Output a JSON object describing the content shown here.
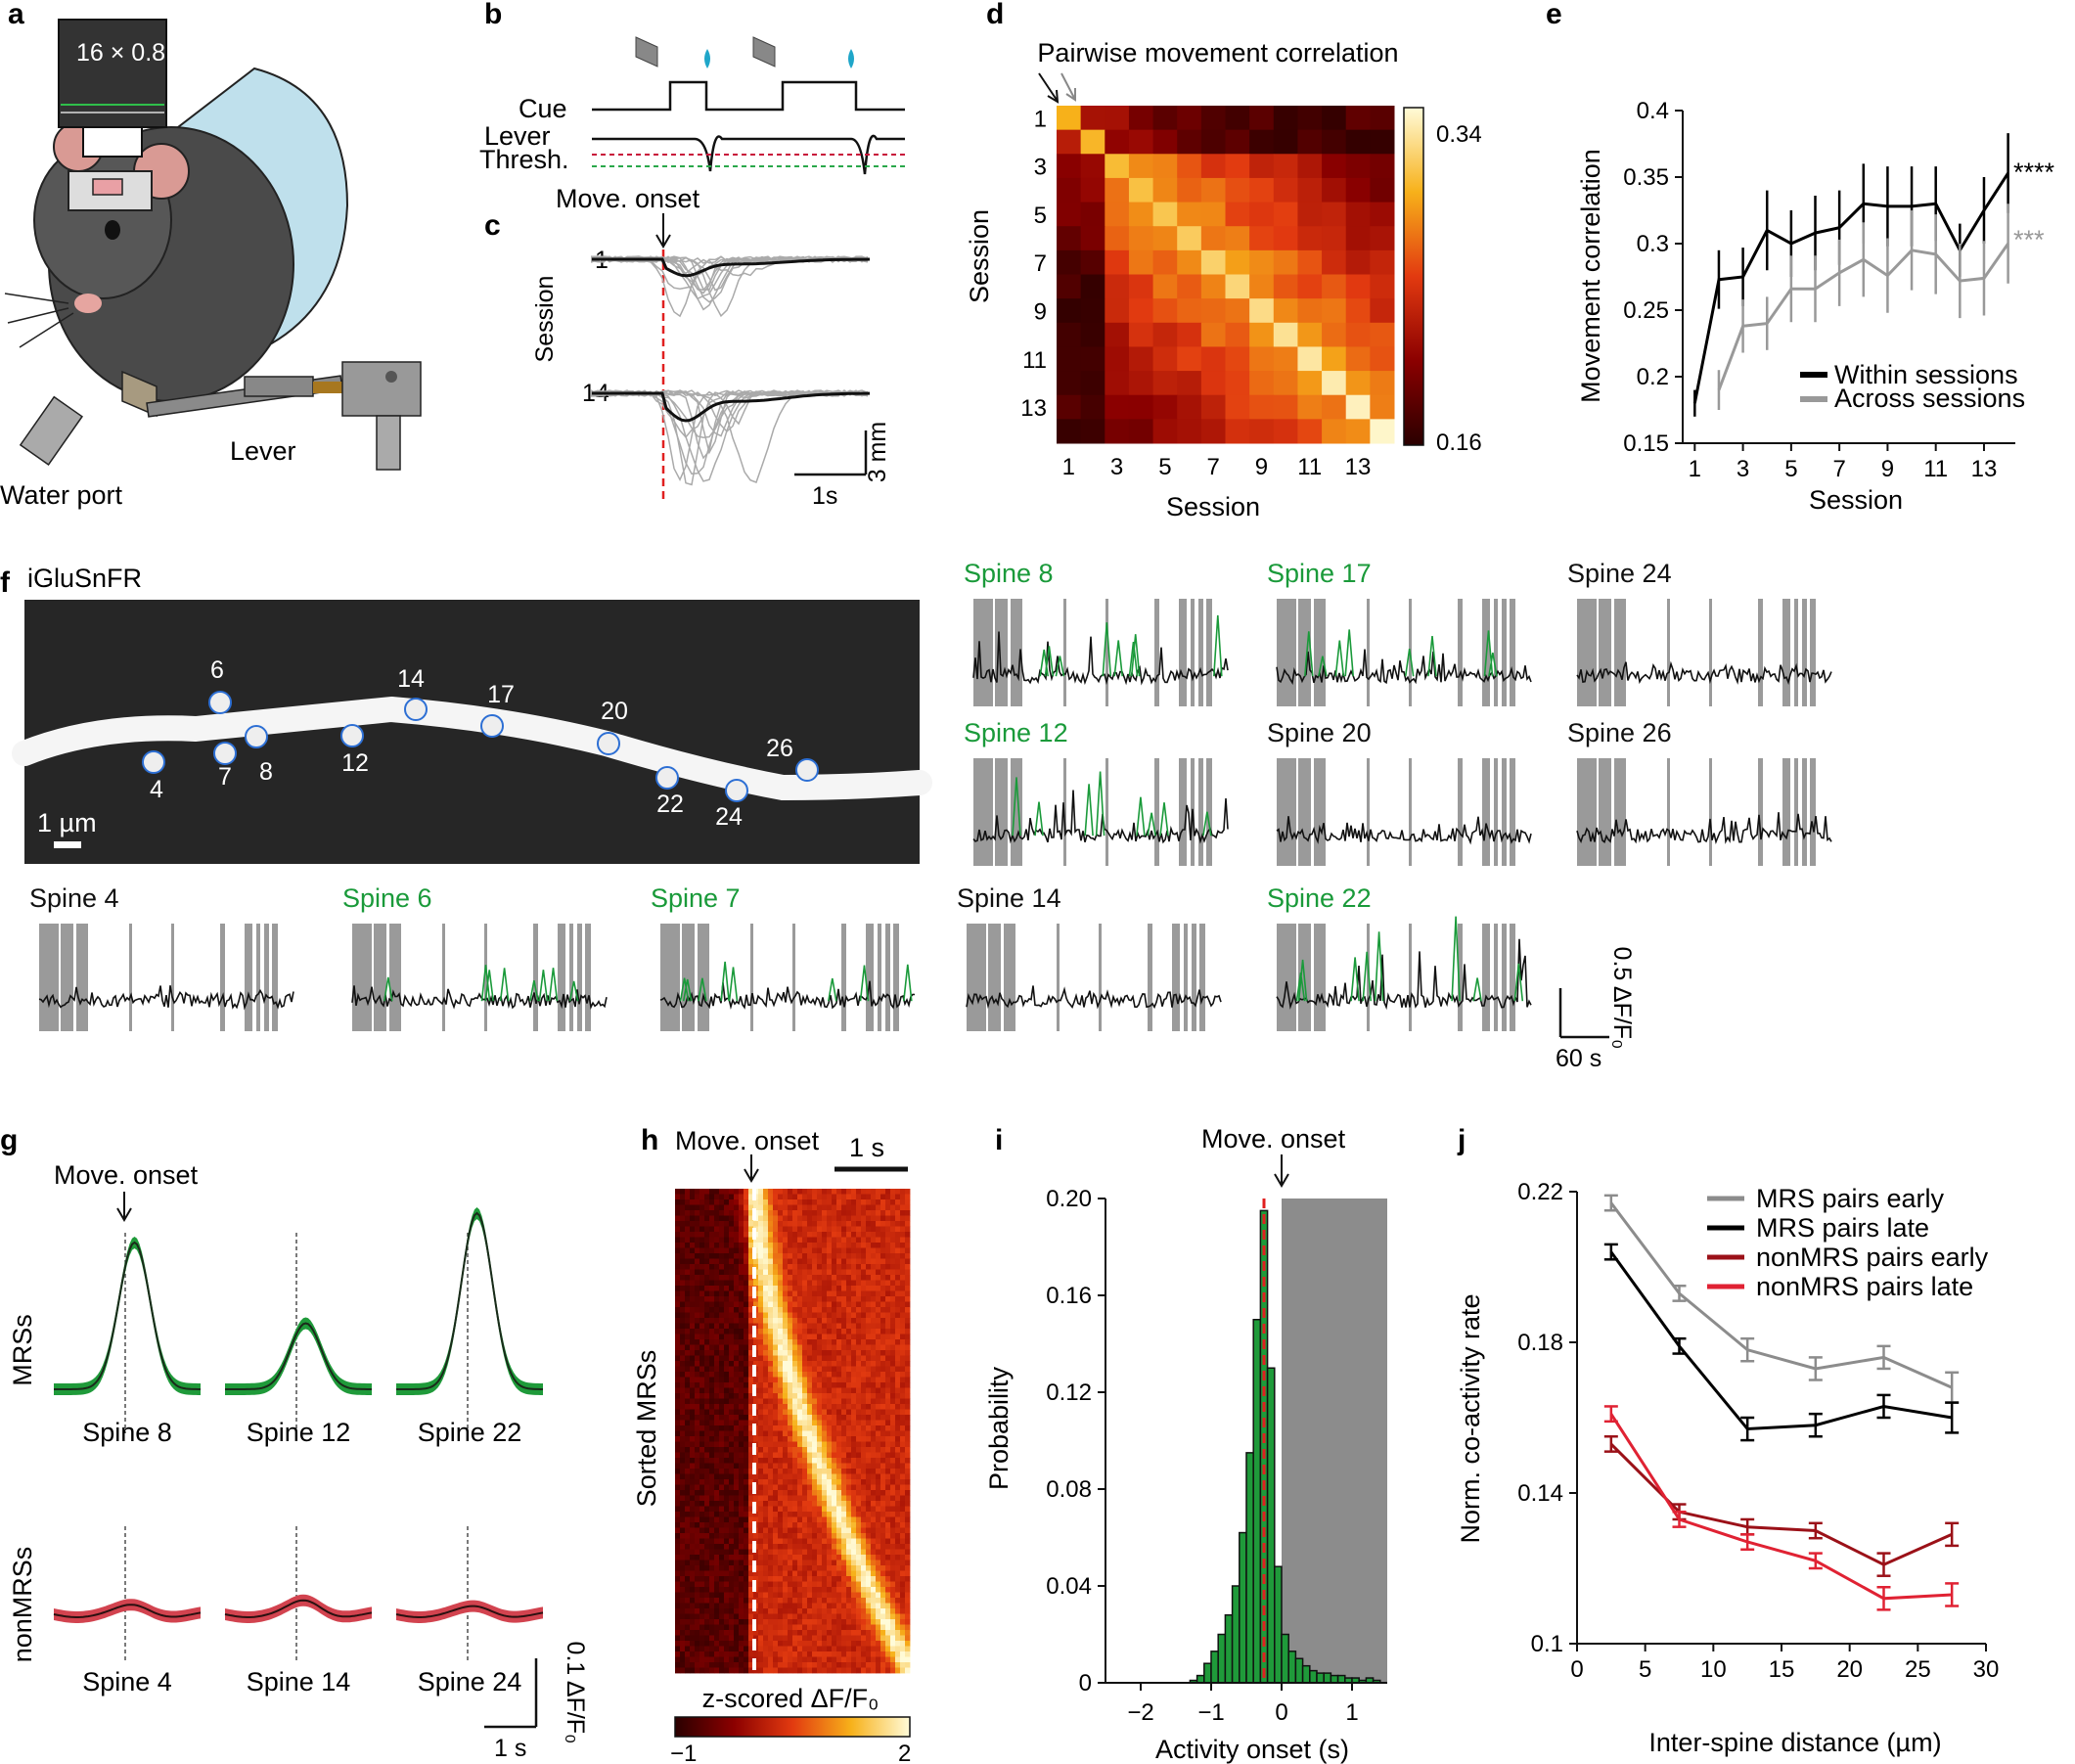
{
  "panels": {
    "a": {
      "letter": "a",
      "objective": "16 × 0.8",
      "water_port": "Water port",
      "lever": "Lever"
    },
    "b": {
      "letter": "b",
      "cue": "Cue",
      "lever": "Lever",
      "thresh": "Thresh."
    },
    "c": {
      "letter": "c",
      "move_onset": "Move. onset",
      "session_label": "Session",
      "session_1": "1",
      "session_14": "14",
      "scale_y": "3 mm",
      "scale_x": "1s"
    },
    "d": {
      "letter": "d",
      "title": "Pairwise movement correlation",
      "xlabel": "Session",
      "ylabel": "Session",
      "cbar_max": "0.34",
      "cbar_min": "0.16"
    },
    "e": {
      "letter": "e",
      "ylabel": "Movement correlation",
      "xlabel": "Session",
      "legend_within": "Within sessions",
      "legend_across": "Across sessions",
      "sig_within": "****",
      "sig_across": "***"
    },
    "f": {
      "letter": "f",
      "image_title": "iGluSnFR",
      "scalebar": "1 µm",
      "scale_y": "0.5 ΔF/F₀",
      "scale_x": "60 s"
    },
    "g": {
      "letter": "g",
      "move_onset": "Move. onset",
      "mrs_label": "MRSs",
      "nonmrs_label": "nonMRSs",
      "scale_y": "0.1 ΔF/F₀",
      "scale_x": "1 s"
    },
    "h": {
      "letter": "h",
      "move_onset": "Move. onset",
      "scale": "1 s",
      "ylabel": "Sorted MRSs",
      "cbar_label": "z-scored ΔF/F₀",
      "cbar_min": "−1",
      "cbar_max": "2"
    },
    "i": {
      "letter": "i",
      "move_onset": "Move. onset",
      "xlabel": "Activity onset (s)",
      "ylabel": "Probability"
    },
    "j": {
      "letter": "j",
      "xlabel": "Inter-spine distance (µm)",
      "ylabel": "Norm. co-activity rate"
    }
  },
  "spine_markers": [
    "6",
    "14",
    "17",
    "20",
    "26",
    "4",
    "7",
    "8",
    "12",
    "22",
    "24"
  ],
  "spine_traces": [
    {
      "label": "Spine 8",
      "color": "#1a9a3a"
    },
    {
      "label": "Spine 17",
      "color": "#1a9a3a"
    },
    {
      "label": "Spine 24",
      "color": "#111111"
    },
    {
      "label": "Spine 12",
      "color": "#1a9a3a"
    },
    {
      "label": "Spine 20",
      "color": "#111111"
    },
    {
      "label": "Spine 26",
      "color": "#111111"
    },
    {
      "label": "Spine 4",
      "color": "#111111"
    },
    {
      "label": "Spine 6",
      "color": "#1a9a3a"
    },
    {
      "label": "Spine 7",
      "color": "#1a9a3a"
    },
    {
      "label": "Spine 14",
      "color": "#111111"
    },
    {
      "label": "Spine 22",
      "color": "#1a9a3a"
    }
  ],
  "g_traces": {
    "mrs": [
      "Spine 8",
      "Spine 12",
      "Spine 22"
    ],
    "nonmrs": [
      "Spine 4",
      "Spine 14",
      "Spine 24"
    ]
  },
  "chart_data": [
    {
      "id": "d",
      "type": "heatmap",
      "title": "Pairwise movement correlation",
      "xlabel": "Session",
      "ylabel": "Session",
      "x_ticks": [
        1,
        3,
        5,
        7,
        9,
        11,
        13
      ],
      "y_ticks": [
        1,
        3,
        5,
        7,
        9,
        11,
        13
      ],
      "colorbar": {
        "min": 0.16,
        "max": 0.34
      },
      "size": 14
    },
    {
      "id": "e",
      "type": "line",
      "xlabel": "Session",
      "ylabel": "Movement correlation",
      "xlim": [
        0.5,
        14.3
      ],
      "ylim": [
        0.15,
        0.4
      ],
      "x_ticks": [
        1,
        3,
        5,
        7,
        9,
        11,
        13
      ],
      "y_ticks": [
        0.15,
        0.2,
        0.25,
        0.3,
        0.35,
        0.4
      ],
      "x": [
        1,
        2,
        3,
        4,
        5,
        6,
        7,
        8,
        9,
        10,
        11,
        12,
        13,
        14
      ],
      "series": [
        {
          "name": "Within sessions",
          "color": "#000000",
          "values": [
            0.18,
            0.273,
            0.275,
            0.31,
            0.3,
            0.308,
            0.312,
            0.33,
            0.328,
            0.328,
            0.33,
            0.295,
            0.325,
            0.353
          ],
          "err": [
            0.01,
            0.022,
            0.022,
            0.03,
            0.025,
            0.028,
            0.028,
            0.03,
            0.03,
            0.03,
            0.028,
            0.02,
            0.025,
            0.03
          ]
        },
        {
          "name": "Across sessions",
          "color": "#999999",
          "values": [
            null,
            0.19,
            0.238,
            0.24,
            0.266,
            0.266,
            0.278,
            0.288,
            0.276,
            0.295,
            0.292,
            0.272,
            0.274,
            0.3
          ],
          "err": [
            null,
            0.015,
            0.02,
            0.02,
            0.025,
            0.025,
            0.025,
            0.028,
            0.028,
            0.03,
            0.03,
            0.028,
            0.028,
            0.03
          ]
        }
      ]
    },
    {
      "id": "i",
      "type": "bar",
      "xlabel": "Activity onset (s)",
      "ylabel": "Probability",
      "xlim": [
        -2.5,
        1.5
      ],
      "ylim": [
        0,
        0.2
      ],
      "x_ticks": [
        -2,
        -1,
        0,
        1
      ],
      "y_ticks": [
        0,
        0.04,
        0.08,
        0.12,
        0.16,
        0.2
      ],
      "bin_width": 0.1,
      "bin_starts": [
        -1.3,
        -1.2,
        -1.1,
        -1.0,
        -0.9,
        -0.8,
        -0.7,
        -0.6,
        -0.5,
        -0.4,
        -0.3,
        -0.2,
        -0.1,
        0.0,
        0.1,
        0.2,
        0.3,
        0.4,
        0.5,
        0.6,
        0.7,
        0.8,
        0.9,
        1.0,
        1.1,
        1.2,
        1.3
      ],
      "values": [
        0.001,
        0.003,
        0.008,
        0.013,
        0.02,
        0.028,
        0.04,
        0.062,
        0.095,
        0.15,
        0.195,
        0.13,
        0.048,
        0.02,
        0.013,
        0.01,
        0.007,
        0.005,
        0.004,
        0.004,
        0.003,
        0.003,
        0.002,
        0.002,
        0.001,
        0.002,
        0.001
      ],
      "median_line": -0.25,
      "shaded_from": 0.0
    },
    {
      "id": "j",
      "type": "line",
      "xlabel": "Inter-spine distance (µm)",
      "ylabel": "Norm. co-activity rate",
      "xlim": [
        0,
        30
      ],
      "ylim": [
        0.1,
        0.22
      ],
      "x_ticks": [
        0,
        5,
        10,
        15,
        20,
        25,
        30
      ],
      "y_ticks": [
        0.1,
        0.14,
        0.18,
        0.22
      ],
      "x": [
        2.5,
        7.5,
        12.5,
        17.5,
        22.5,
        27.5
      ],
      "series": [
        {
          "name": "MRS pairs early",
          "color": "#8c8c8c",
          "values": [
            0.217,
            0.193,
            0.178,
            0.173,
            0.176,
            0.168
          ],
          "err": [
            0.002,
            0.002,
            0.003,
            0.003,
            0.003,
            0.004
          ]
        },
        {
          "name": "MRS pairs late",
          "color": "#000000",
          "values": [
            0.204,
            0.179,
            0.157,
            0.158,
            0.163,
            0.16
          ],
          "err": [
            0.002,
            0.002,
            0.003,
            0.003,
            0.003,
            0.004
          ]
        },
        {
          "name": "nonMRS pairs early",
          "color": "#9b1118",
          "values": [
            0.153,
            0.135,
            0.131,
            0.13,
            0.121,
            0.129
          ],
          "err": [
            0.002,
            0.002,
            0.002,
            0.002,
            0.003,
            0.003
          ]
        },
        {
          "name": "nonMRS pairs late",
          "color": "#e02233",
          "values": [
            0.161,
            0.133,
            0.127,
            0.122,
            0.112,
            0.113
          ],
          "err": [
            0.002,
            0.002,
            0.002,
            0.002,
            0.003,
            0.003
          ]
        }
      ]
    }
  ]
}
